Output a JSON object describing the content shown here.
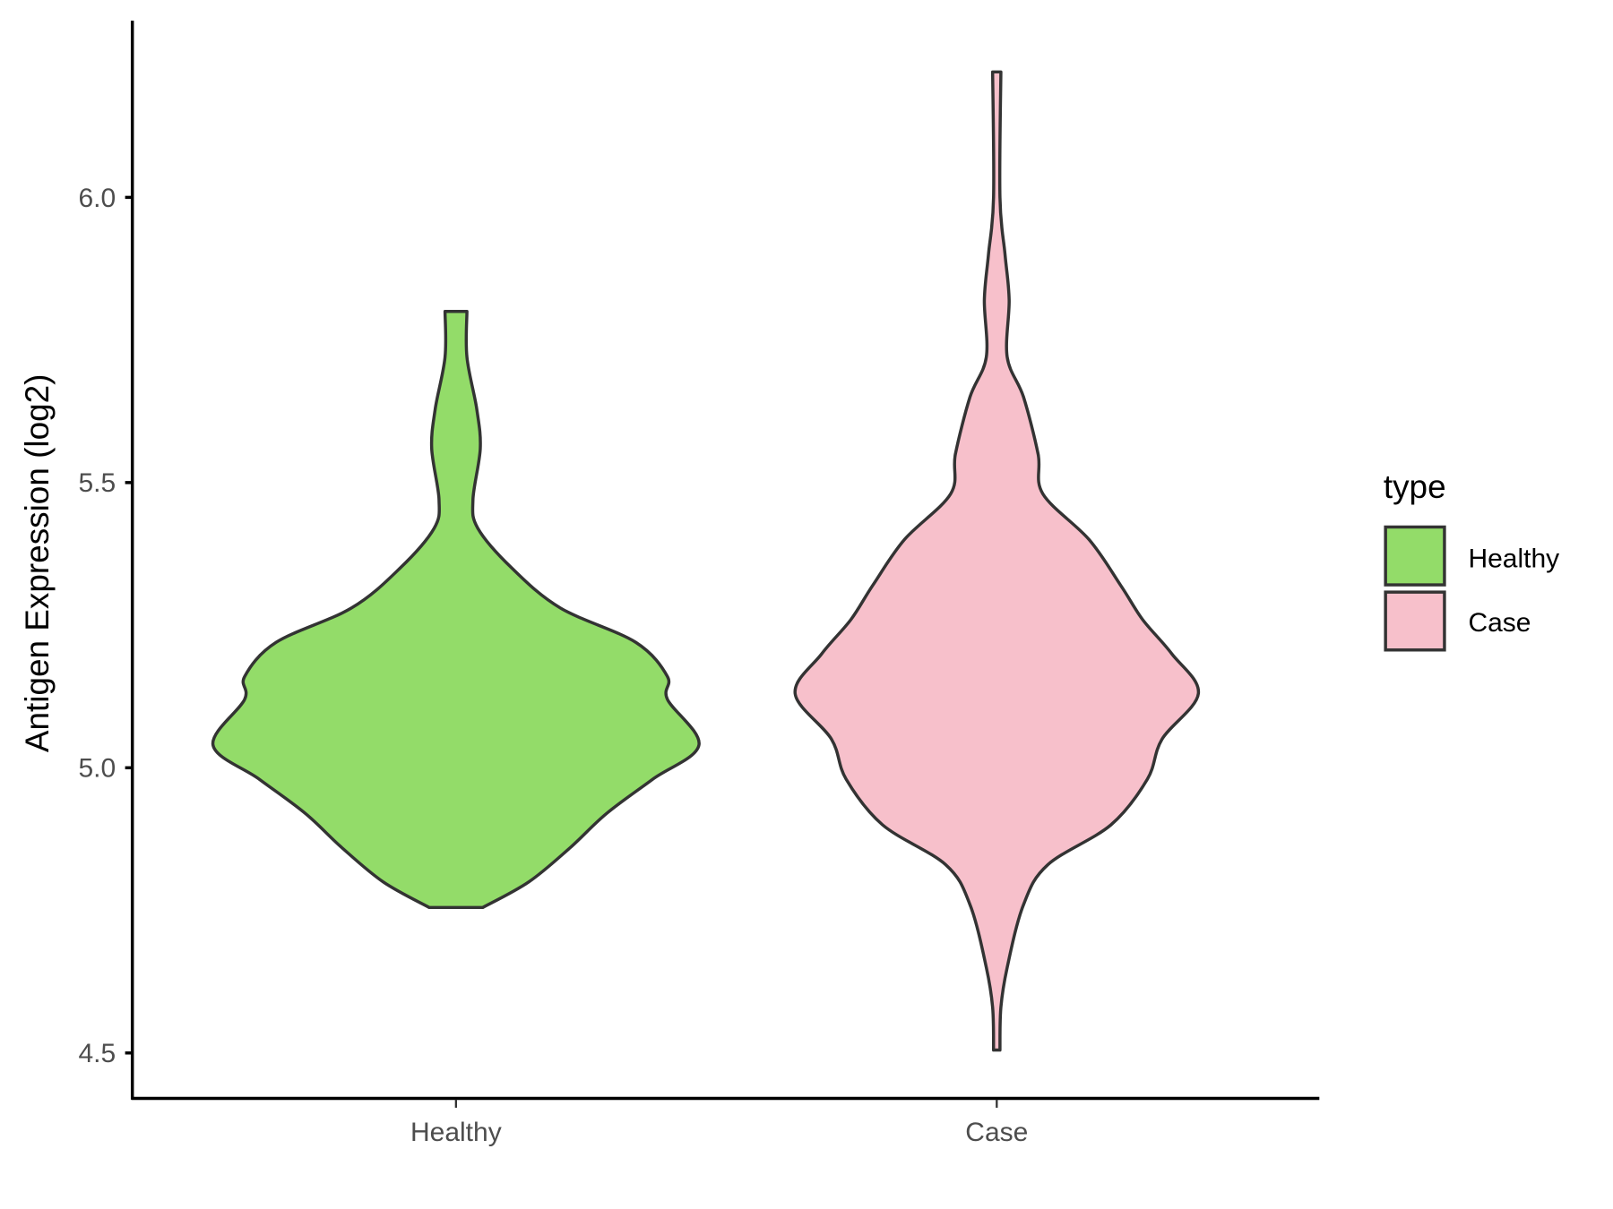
{
  "chart_data": {
    "type": "violin",
    "title": "",
    "xlabel": "",
    "ylabel": "Antigen Expression (log2)",
    "categories": [
      "Healthy",
      "Case"
    ],
    "ylim": [
      4.42,
      6.3
    ],
    "yticks": [
      4.5,
      5.0,
      5.5,
      6.0
    ],
    "ytick_labels": [
      "4.5",
      "5.0",
      "5.5",
      "6.0"
    ],
    "grid": false,
    "legend": {
      "title": "type",
      "placement": "right",
      "entries": [
        "Healthy",
        "Case"
      ]
    },
    "series": [
      {
        "name": "Healthy",
        "color": "#93DC69",
        "profile_y": [
          4.755,
          4.8,
          4.86,
          4.92,
          4.98,
          5.04,
          5.12,
          5.16,
          5.22,
          5.28,
          5.35,
          5.42,
          5.47,
          5.56,
          5.63,
          5.72,
          5.8
        ],
        "relative_density": [
          0.11,
          0.3,
          0.47,
          0.62,
          0.81,
          1.0,
          0.87,
          0.87,
          0.74,
          0.43,
          0.23,
          0.09,
          0.07,
          0.1,
          0.085,
          0.045,
          0.045
        ]
      },
      {
        "name": "Case",
        "color": "#F7C0CB",
        "profile_y": [
          4.505,
          4.58,
          4.65,
          4.76,
          4.83,
          4.9,
          4.98,
          5.05,
          5.13,
          5.2,
          5.26,
          5.32,
          5.4,
          5.48,
          5.55,
          5.65,
          5.72,
          5.82,
          5.9,
          6.0,
          6.22
        ],
        "relative_density": [
          0.013,
          0.017,
          0.043,
          0.11,
          0.21,
          0.47,
          0.62,
          0.68,
          0.83,
          0.72,
          0.6,
          0.51,
          0.38,
          0.19,
          0.17,
          0.11,
          0.043,
          0.051,
          0.034,
          0.013,
          0.017
        ]
      }
    ],
    "outline_color": "#333333"
  }
}
